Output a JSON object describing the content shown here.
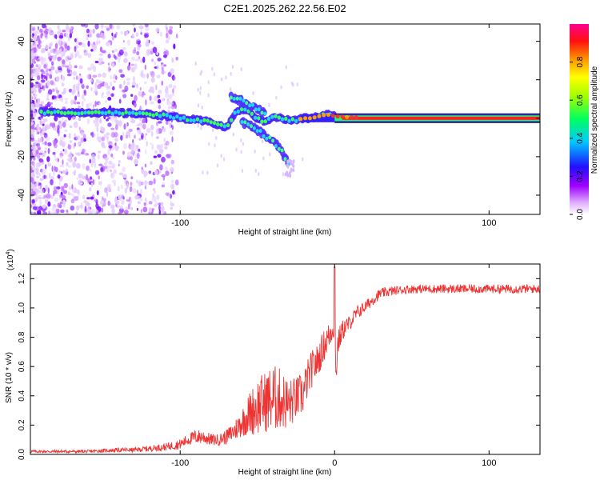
{
  "title": "C2E1.2025.262.22.56.E02",
  "chart_data": [
    {
      "type": "heatmap",
      "name": "spectrogram",
      "xlabel": "Height of straight line (km)",
      "ylabel": "Frequency (Hz)",
      "xlim": [
        -197,
        133
      ],
      "ylim": [
        -50,
        49
      ],
      "xticks": [
        -100,
        100
      ],
      "yticks": [
        -40,
        -20,
        0,
        20,
        40
      ],
      "colorbar": {
        "label": "Normalized spectral amplitude",
        "range": [
          0.0,
          1.0
        ],
        "ticks": [
          "0.0",
          "0.2",
          "0.4",
          "0.6",
          "0.8"
        ],
        "tick_values": [
          0.0,
          0.2,
          0.4,
          0.6,
          0.8
        ],
        "colors": [
          "#ffffff",
          "#b000ff",
          "#2000ff",
          "#00d0ff",
          "#00ff40",
          "#ffff00",
          "#ff8000",
          "#ff0000",
          "#ff0080"
        ]
      },
      "ridge": {
        "x": [
          -190,
          -170,
          -150,
          -130,
          -110,
          -100,
          -90,
          -80,
          -70,
          -65,
          -60,
          -55,
          -50,
          -45,
          -40,
          -35,
          -30,
          -25,
          -20,
          -15,
          -10,
          -5,
          0,
          10,
          30,
          60,
          90,
          133
        ],
        "y": [
          3,
          3,
          3,
          2.5,
          1.5,
          0,
          -1,
          -2,
          -5,
          2,
          5,
          3,
          0,
          -2,
          1,
          0,
          -1,
          -1,
          0,
          0,
          1,
          2,
          1,
          0.5,
          0,
          0,
          0,
          0
        ]
      },
      "branches": [
        {
          "x": [
            -67,
            -60,
            -55,
            -50,
            -45
          ],
          "y": [
            11,
            9,
            7,
            5,
            3
          ]
        },
        {
          "x": [
            -60,
            -55,
            -50,
            -45,
            -40,
            -35,
            -30
          ],
          "y": [
            -2,
            -4,
            -6,
            -9,
            -12,
            -16,
            -24
          ]
        }
      ]
    },
    {
      "type": "line",
      "name": "snr",
      "xlabel": "Height of straight line (km)",
      "ylabel": "SNR (10 * v/v)",
      "yscale_label": "(x10",
      "yscale_exp": "4",
      "yscale_close": ")",
      "xlim": [
        -197,
        133
      ],
      "ylim": [
        0,
        1.3
      ],
      "xticks": [
        -100,
        0,
        100
      ],
      "yticks": [
        "0.0",
        "0.2",
        "0.4",
        "0.6",
        "0.8",
        "1.0",
        "1.2"
      ],
      "ytick_values": [
        0,
        0.2,
        0.4,
        0.6,
        0.8,
        1.0,
        1.2
      ],
      "color": "#ee3333",
      "series": {
        "x": [
          -197,
          -180,
          -160,
          -140,
          -130,
          -120,
          -110,
          -100,
          -95,
          -90,
          -85,
          -80,
          -75,
          -70,
          -65,
          -60,
          -55,
          -50,
          -45,
          -40,
          -35,
          -30,
          -25,
          -20,
          -18,
          -15,
          -12,
          -10,
          -8,
          -6,
          -4,
          -2,
          0,
          1,
          2,
          4,
          6,
          8,
          10,
          12,
          15,
          20,
          25,
          30,
          40,
          50,
          60,
          80,
          100,
          120,
          133
        ],
        "base": [
          0.02,
          0.02,
          0.02,
          0.03,
          0.03,
          0.04,
          0.05,
          0.07,
          0.1,
          0.12,
          0.12,
          0.1,
          0.1,
          0.12,
          0.16,
          0.22,
          0.28,
          0.33,
          0.36,
          0.38,
          0.38,
          0.34,
          0.38,
          0.42,
          0.5,
          0.58,
          0.62,
          0.66,
          0.72,
          0.76,
          0.8,
          0.85,
          0.9,
          0.55,
          0.75,
          0.82,
          0.86,
          0.88,
          0.9,
          0.93,
          0.97,
          1.01,
          1.06,
          1.1,
          1.12,
          1.13,
          1.13,
          1.13,
          1.13,
          1.13,
          1.13
        ],
        "amp": [
          0.02,
          0.02,
          0.02,
          0.03,
          0.03,
          0.04,
          0.05,
          0.07,
          0.08,
          0.1,
          0.1,
          0.08,
          0.08,
          0.1,
          0.14,
          0.2,
          0.3,
          0.4,
          0.42,
          0.48,
          0.42,
          0.36,
          0.3,
          0.3,
          0.28,
          0.26,
          0.24,
          0.22,
          0.22,
          0.22,
          0.2,
          0.2,
          0.2,
          0.2,
          0.18,
          0.16,
          0.14,
          0.12,
          0.1,
          0.1,
          0.1,
          0.08,
          0.08,
          0.07,
          0.06,
          0.06,
          0.06,
          0.06,
          0.06,
          0.06,
          0.06
        ]
      },
      "peak": {
        "x": 0,
        "y": 1.28
      }
    }
  ]
}
